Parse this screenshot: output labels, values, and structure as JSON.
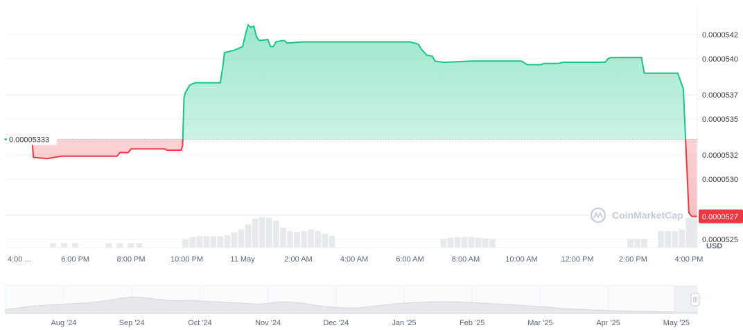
{
  "chart_data": {
    "type": "area",
    "currency_unit": "USD",
    "watermark": "CoinMarketCap",
    "reference_price": 5.333e-05,
    "reference_label": "0.00005333",
    "current_price_label": "0.0000527",
    "colors": {
      "up": "#16c784",
      "down": "#ea3943",
      "grid": "#eff2f5",
      "volume": "#e3e6ea"
    },
    "y_axis": {
      "ticks": [
        "0.0000542",
        "0.0000540",
        "0.0000537",
        "0.0000535",
        "0.0000532",
        "0.0000530",
        "0.0000525"
      ],
      "tick_values": [
        5.42e-05,
        5.4e-05,
        5.37e-05,
        5.35e-05,
        5.32e-05,
        5.3e-05,
        5.27e-05,
        5.25e-05
      ],
      "range": [
        5.243e-05,
        5.443e-05
      ],
      "grid": true
    },
    "x_axis": {
      "ticks": [
        "4:00 ...",
        "6:00 PM",
        "8:00 PM",
        "10:00 PM",
        "11 May",
        "2:00 AM",
        "4:00 AM",
        "6:00 AM",
        "8:00 AM",
        "10:00 AM",
        "12:00 PM",
        "2:00 PM",
        "4:00 PM"
      ],
      "tick_hours": [
        0,
        2,
        4,
        6,
        8,
        10,
        12,
        14,
        16,
        18,
        20,
        22,
        24
      ],
      "range_hours": [
        -0.5,
        24.3
      ]
    },
    "series": [
      {
        "x_hours": [
          -0.5,
          0.45,
          0.5,
          1.0,
          1.5,
          1.7,
          3.5,
          3.6,
          3.9,
          4.0,
          5.2,
          5.3,
          5.8,
          5.85,
          5.9,
          5.95,
          6.1,
          6.3,
          6.4,
          7.2,
          7.3,
          7.35,
          7.7,
          8.0,
          8.1,
          8.2,
          8.3,
          8.4,
          8.5,
          8.6,
          8.9,
          9.0,
          9.1,
          9.2,
          9.4,
          9.5,
          9.6,
          10.2,
          10.3,
          12.0,
          14.0,
          14.3,
          14.4,
          14.6,
          14.8,
          14.9,
          15.2,
          15.3,
          16.2,
          16.4,
          17.0,
          18.0,
          18.2,
          18.7,
          18.8,
          19.3,
          19.5,
          20.0,
          21.0,
          21.1,
          21.2,
          22.0,
          22.3,
          22.4,
          23.2,
          23.4,
          23.6,
          23.8,
          24.0,
          24.1,
          24.3
        ],
        "y": [
          5.333e-05,
          5.333e-05,
          5.318e-05,
          5.317e-05,
          5.319e-05,
          5.319e-05,
          5.319e-05,
          5.322e-05,
          5.322e-05,
          5.325e-05,
          5.325e-05,
          5.324e-05,
          5.324e-05,
          5.328e-05,
          5.368e-05,
          5.372e-05,
          5.378e-05,
          5.38e-05,
          5.38e-05,
          5.38e-05,
          5.395e-05,
          5.405e-05,
          5.407e-05,
          5.41e-05,
          5.42e-05,
          5.428e-05,
          5.426e-05,
          5.427e-05,
          5.418e-05,
          5.415e-05,
          5.416e-05,
          5.41e-05,
          5.41e-05,
          5.414e-05,
          5.415e-05,
          5.415e-05,
          5.413e-05,
          5.414e-05,
          5.414e-05,
          5.414e-05,
          5.414e-05,
          5.412e-05,
          5.408e-05,
          5.403e-05,
          5.402e-05,
          5.398e-05,
          5.397e-05,
          5.397e-05,
          5.398e-05,
          5.398e-05,
          5.398e-05,
          5.398e-05,
          5.395e-05,
          5.395e-05,
          5.396e-05,
          5.396e-05,
          5.397e-05,
          5.397e-05,
          5.397e-05,
          5.4e-05,
          5.401e-05,
          5.401e-05,
          5.401e-05,
          5.388e-05,
          5.388e-05,
          5.388e-05,
          5.388e-05,
          5.375e-05,
          5.272e-05,
          5.269e-05,
          5.269e-05
        ]
      }
    ],
    "volume_bars": [
      {
        "x": 1.2,
        "h": 0.14
      },
      {
        "x": 1.6,
        "h": 0.14
      },
      {
        "x": 2.0,
        "h": 0.14
      },
      {
        "x": 3.2,
        "h": 0.14
      },
      {
        "x": 3.6,
        "h": 0.14
      },
      {
        "x": 4.0,
        "h": 0.14
      },
      {
        "x": 4.3,
        "h": 0.14
      },
      {
        "x": 5.95,
        "h": 0.25
      },
      {
        "x": 6.2,
        "h": 0.32
      },
      {
        "x": 6.45,
        "h": 0.35
      },
      {
        "x": 6.7,
        "h": 0.35
      },
      {
        "x": 6.95,
        "h": 0.35
      },
      {
        "x": 7.2,
        "h": 0.35
      },
      {
        "x": 7.45,
        "h": 0.38
      },
      {
        "x": 7.7,
        "h": 0.46
      },
      {
        "x": 7.95,
        "h": 0.55
      },
      {
        "x": 8.2,
        "h": 0.7
      },
      {
        "x": 8.45,
        "h": 0.88
      },
      {
        "x": 8.7,
        "h": 0.92
      },
      {
        "x": 8.95,
        "h": 0.9
      },
      {
        "x": 9.2,
        "h": 0.82
      },
      {
        "x": 9.45,
        "h": 0.6
      },
      {
        "x": 9.7,
        "h": 0.5
      },
      {
        "x": 9.95,
        "h": 0.48
      },
      {
        "x": 10.2,
        "h": 0.5
      },
      {
        "x": 10.45,
        "h": 0.55
      },
      {
        "x": 10.7,
        "h": 0.5
      },
      {
        "x": 10.95,
        "h": 0.42
      },
      {
        "x": 11.2,
        "h": 0.36
      },
      {
        "x": 15.2,
        "h": 0.26
      },
      {
        "x": 15.45,
        "h": 0.3
      },
      {
        "x": 15.7,
        "h": 0.32
      },
      {
        "x": 15.95,
        "h": 0.32
      },
      {
        "x": 16.2,
        "h": 0.32
      },
      {
        "x": 16.45,
        "h": 0.3
      },
      {
        "x": 16.7,
        "h": 0.28
      },
      {
        "x": 16.95,
        "h": 0.26
      },
      {
        "x": 21.9,
        "h": 0.26
      },
      {
        "x": 22.15,
        "h": 0.26
      },
      {
        "x": 22.4,
        "h": 0.26
      },
      {
        "x": 23.0,
        "h": 0.5
      },
      {
        "x": 23.25,
        "h": 0.5
      },
      {
        "x": 23.5,
        "h": 0.5
      },
      {
        "x": 23.75,
        "h": 0.55
      },
      {
        "x": 24.0,
        "h": 0.9
      },
      {
        "x": 24.2,
        "h": 1.0
      }
    ],
    "navigator": {
      "ticks": [
        "Aug '24",
        "Sep '24",
        "Oct '24",
        "Nov '24",
        "Dec '24",
        "Jan '25",
        "Feb '25",
        "Mar '25",
        "Apr '25",
        "May '25"
      ],
      "profile": [
        0.15,
        0.2,
        0.26,
        0.3,
        0.33,
        0.35,
        0.38,
        0.4,
        0.44,
        0.5,
        0.58,
        0.62,
        0.6,
        0.55,
        0.5,
        0.48,
        0.5,
        0.47,
        0.45,
        0.42,
        0.4,
        0.38,
        0.35,
        0.4,
        0.44,
        0.42,
        0.38,
        0.3,
        0.25,
        0.22,
        0.2,
        0.23,
        0.28,
        0.33,
        0.38,
        0.4,
        0.42,
        0.44,
        0.45,
        0.44,
        0.42,
        0.4,
        0.38,
        0.35,
        0.33,
        0.3,
        0.27,
        0.24,
        0.2,
        0.17,
        0.15,
        0.13,
        0.12,
        0.1,
        0.09,
        0.08,
        0.07,
        0.06,
        0.06,
        0.05,
        0.05
      ]
    }
  }
}
